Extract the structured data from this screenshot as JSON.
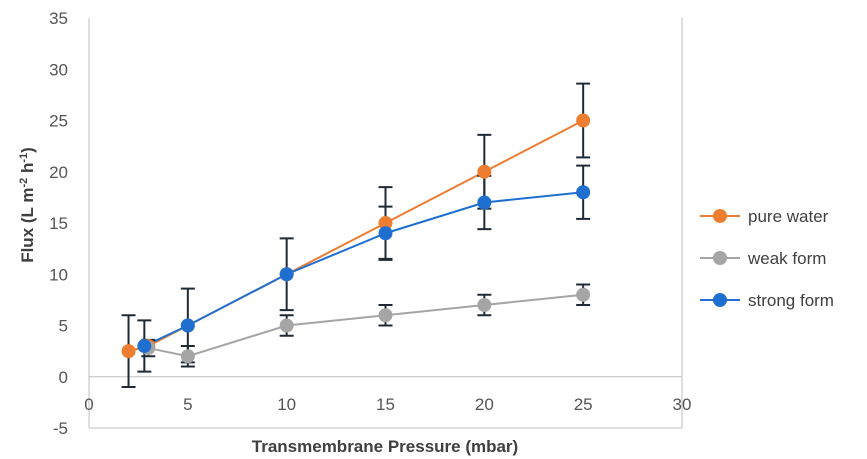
{
  "chart_data": {
    "type": "line",
    "title": "",
    "xlabel": "Transmembrane Pressure (mbar)",
    "ylabel": "Flux (L m",
    "ylabel_sup1": "-2",
    "ylabel_mid": " h",
    "ylabel_sup2": "-1",
    "ylabel_end": ")",
    "xlim": [
      0,
      30
    ],
    "ylim": [
      -5,
      35
    ],
    "xticks": [
      0,
      5,
      10,
      15,
      20,
      25,
      30
    ],
    "yticks": [
      -5,
      0,
      5,
      10,
      15,
      20,
      25,
      30,
      35
    ],
    "grid": false,
    "legend_position": "right",
    "series": [
      {
        "name": "pure water",
        "color": "#ED7D31",
        "x": [
          2,
          3,
          5,
          10,
          15,
          20,
          25
        ],
        "y": [
          2.5,
          3,
          5,
          10,
          15,
          20,
          25
        ],
        "yerr": [
          3.5,
          null,
          null,
          null,
          3.5,
          3.6,
          3.6
        ]
      },
      {
        "name": "weak form",
        "color": "#A5A5A5",
        "x": [
          3,
          5,
          10,
          15,
          20,
          25
        ],
        "y": [
          2.8,
          2,
          5,
          6,
          7,
          8
        ],
        "yerr": [
          0.8,
          1,
          1,
          1,
          1,
          1
        ]
      },
      {
        "name": "strong form",
        "color": "#1F6FD0",
        "x": [
          2.8,
          5,
          10,
          15,
          20,
          25
        ],
        "y": [
          3,
          5,
          10,
          14,
          17,
          18
        ],
        "yerr": [
          2.5,
          3.6,
          3.5,
          2.6,
          2.6,
          2.6
        ]
      }
    ]
  }
}
